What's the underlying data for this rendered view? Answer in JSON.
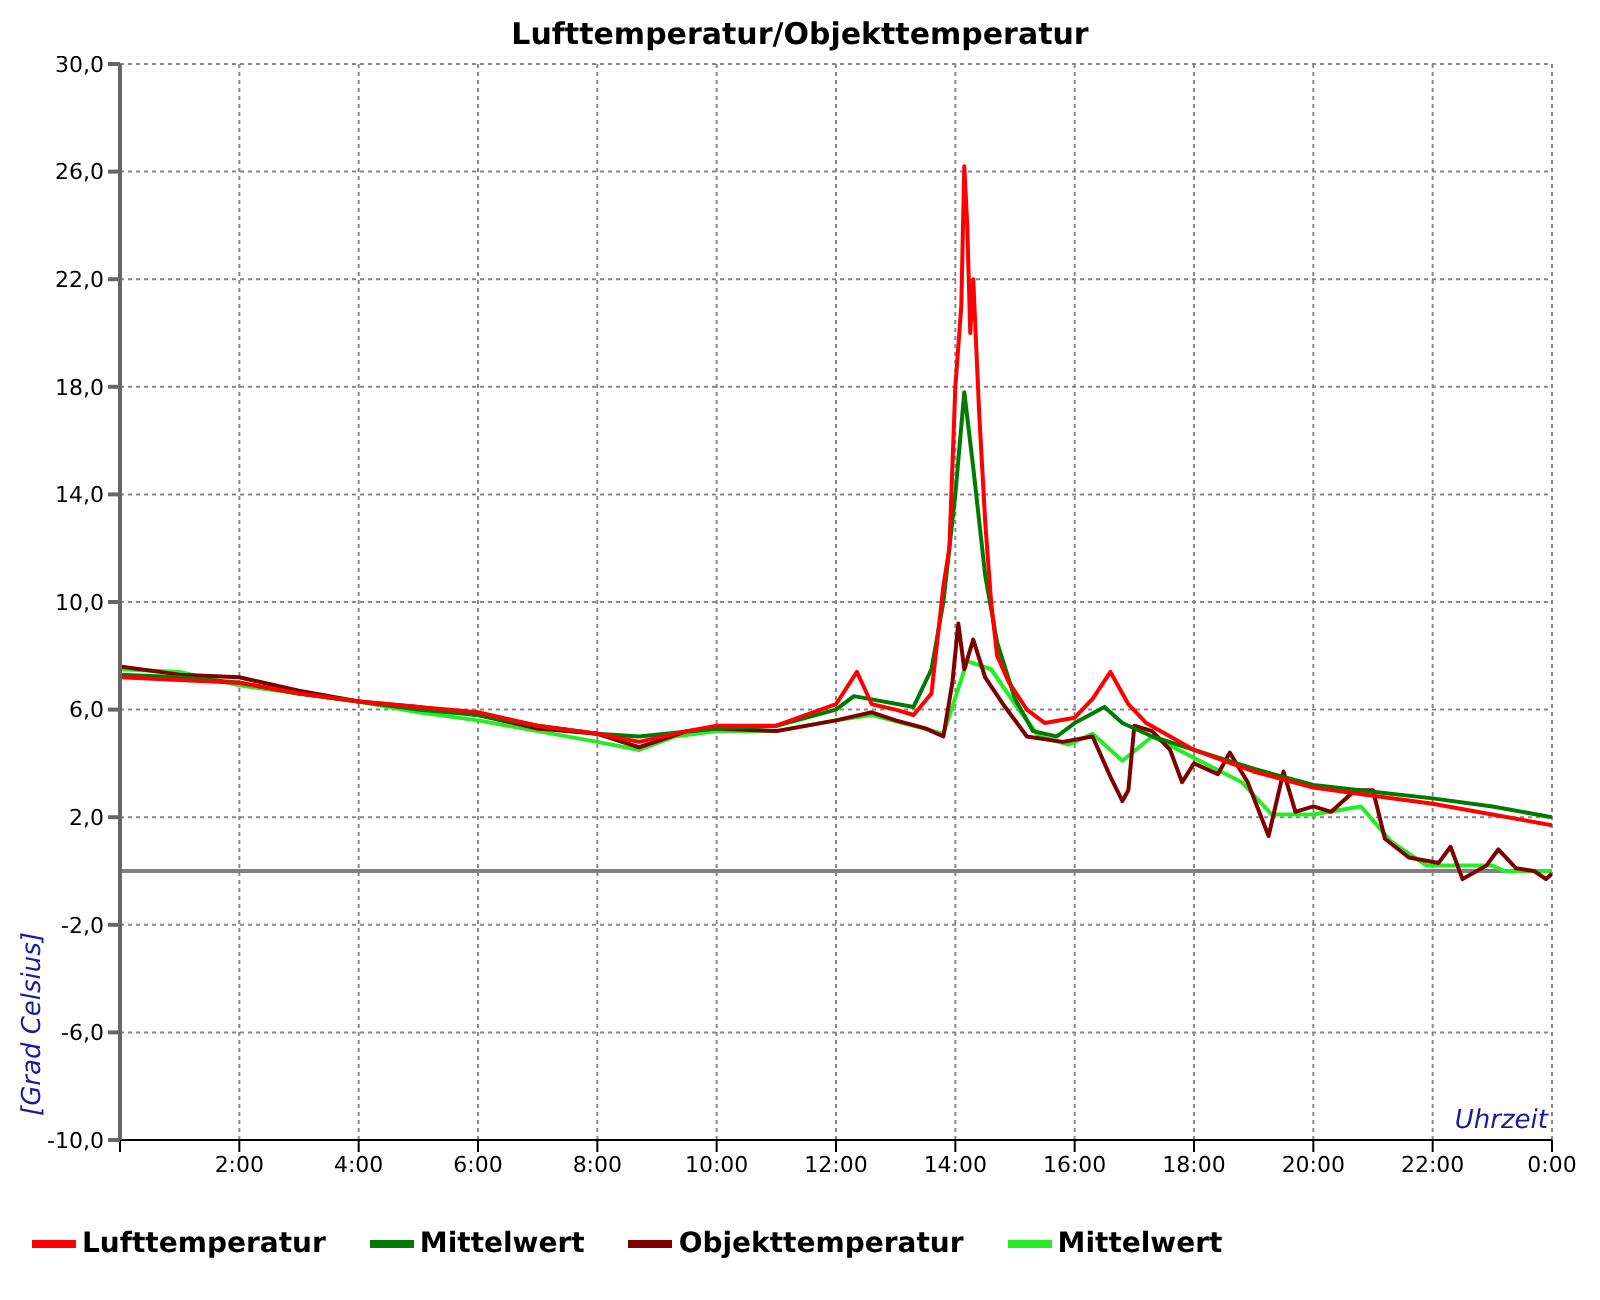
{
  "chart_data": {
    "type": "line",
    "title": "Lufttemperatur/Objekttemperatur",
    "xlabel": "Uhrzeit",
    "ylabel": "[Grad Celsius]",
    "xlim": [
      0,
      24
    ],
    "xticks": [
      {
        "value": 0,
        "label": null
      },
      {
        "value": 2,
        "label": "2:00"
      },
      {
        "value": 4,
        "label": "4:00"
      },
      {
        "value": 6,
        "label": "6:00"
      },
      {
        "value": 8,
        "label": "8:00"
      },
      {
        "value": 10,
        "label": "10:00"
      },
      {
        "value": 12,
        "label": "12:00"
      },
      {
        "value": 14,
        "label": "14:00"
      },
      {
        "value": 16,
        "label": "16:00"
      },
      {
        "value": 18,
        "label": "18:00"
      },
      {
        "value": 20,
        "label": "20:00"
      },
      {
        "value": 22,
        "label": "22:00"
      },
      {
        "value": 24,
        "label": "0:00"
      }
    ],
    "ylim": [
      -10,
      30
    ],
    "yticks": [
      {
        "value": -10,
        "label": "-10,0"
      },
      {
        "value": -6,
        "label": "-6,0"
      },
      {
        "value": -2,
        "label": "-2,0"
      },
      {
        "value": 2,
        "label": "2,0"
      },
      {
        "value": 6,
        "label": "6,0"
      },
      {
        "value": 10,
        "label": "10,0"
      },
      {
        "value": 14,
        "label": "14,0"
      },
      {
        "value": 18,
        "label": "18,0"
      },
      {
        "value": 22,
        "label": "22,0"
      },
      {
        "value": 26,
        "label": "26,0"
      },
      {
        "value": 30,
        "label": "30,0"
      }
    ],
    "grid": true,
    "legend": "bottom",
    "marker": "none",
    "line_style": "solid",
    "ref_lines": [
      {
        "axis": "y",
        "value": 0,
        "color": "#808080"
      }
    ],
    "series": [
      {
        "name": "Lufttemperatur",
        "color": "#ff0000",
        "x": [
          0,
          1,
          2,
          3,
          4,
          5,
          6,
          7,
          8,
          8.7,
          9.5,
          10,
          11,
          12,
          12.35,
          12.6,
          13,
          13.3,
          13.6,
          13.8,
          13.9,
          14,
          14.1,
          14.15,
          14.2,
          14.25,
          14.3,
          14.4,
          14.5,
          14.6,
          14.7,
          14.9,
          15.2,
          15.5,
          16,
          16.3,
          16.6,
          16.9,
          17.2,
          18,
          19,
          20,
          21,
          22,
          23,
          24
        ],
        "values": [
          7.2,
          7.1,
          7.0,
          6.6,
          6.3,
          6.1,
          5.9,
          5.4,
          5.1,
          4.8,
          5.2,
          5.4,
          5.4,
          6.2,
          7.4,
          6.2,
          6.0,
          5.8,
          6.6,
          10.6,
          12,
          18,
          21,
          26.2,
          24,
          20,
          22,
          17,
          13,
          10,
          8,
          7,
          6,
          5.5,
          5.7,
          6.4,
          7.4,
          6.2,
          5.5,
          4.5,
          3.7,
          3.1,
          2.8,
          2.5,
          2.1,
          1.7
        ]
      },
      {
        "name": "Mittelwert",
        "color": "#007a00",
        "x": [
          0,
          1,
          2,
          3,
          4,
          5,
          6,
          7,
          8,
          8.7,
          10,
          11,
          12,
          12.3,
          13.3,
          13.6,
          13.8,
          14,
          14.15,
          14.3,
          14.5,
          14.7,
          15,
          15.3,
          15.7,
          16,
          16.5,
          16.8,
          17.3,
          18,
          19,
          20,
          21,
          22,
          23,
          24
        ],
        "values": [
          7.3,
          7.2,
          7.0,
          6.6,
          6.3,
          6.0,
          5.8,
          5.4,
          5.1,
          5.0,
          5.3,
          5.4,
          6.0,
          6.5,
          6.1,
          7.5,
          10,
          14,
          17.8,
          15,
          11,
          8.5,
          6.4,
          5.2,
          5.0,
          5.5,
          6.1,
          5.5,
          5.0,
          4.5,
          3.8,
          3.2,
          2.95,
          2.7,
          2.4,
          2.0
        ]
      },
      {
        "name": "Objekttemperatur",
        "color": "#800000",
        "x": [
          0,
          1,
          2,
          3,
          4,
          5,
          6,
          7,
          8,
          8.7,
          9.5,
          10,
          11,
          12,
          12.6,
          13,
          13.5,
          13.8,
          13.95,
          14.05,
          14.15,
          14.3,
          14.5,
          14.8,
          15.2,
          15.8,
          16.3,
          16.6,
          16.8,
          16.9,
          17,
          17.3,
          17.6,
          17.8,
          18,
          18.4,
          18.6,
          18.9,
          19.25,
          19.5,
          19.7,
          20,
          20.3,
          20.7,
          21,
          21.2,
          21.6,
          22.1,
          22.3,
          22.5,
          22.9,
          23.1,
          23.4,
          23.7,
          23.9,
          24
        ],
        "values": [
          7.6,
          7.3,
          7.2,
          6.7,
          6.3,
          6.1,
          5.8,
          5.3,
          5.1,
          4.6,
          5.2,
          5.3,
          5.2,
          5.6,
          5.9,
          5.6,
          5.3,
          5.0,
          7.0,
          9.2,
          7.5,
          8.6,
          7.2,
          6.2,
          5.0,
          4.8,
          5.0,
          3.5,
          2.6,
          3.0,
          5.4,
          5.2,
          4.5,
          3.3,
          4.0,
          3.6,
          4.4,
          3.3,
          1.3,
          3.7,
          2.2,
          2.4,
          2.2,
          3.0,
          3.0,
          1.2,
          0.5,
          0.3,
          0.9,
          -0.3,
          0.2,
          0.8,
          0.1,
          0.0,
          -0.3,
          -0.1
        ]
      },
      {
        "name": "Mittelwert",
        "color": "#22ee22",
        "x": [
          0,
          1,
          2,
          3,
          4,
          5,
          6,
          7,
          8,
          8.7,
          9.3,
          10,
          11,
          12,
          12.6,
          13.3,
          13.8,
          14.2,
          14.6,
          15,
          15.4,
          15.9,
          16.3,
          16.8,
          17.3,
          18.8,
          19.3,
          20,
          20.8,
          21.3,
          21.9,
          23,
          23.2,
          24
        ],
        "values": [
          7.5,
          7.4,
          6.9,
          6.6,
          6.3,
          5.9,
          5.6,
          5.2,
          4.8,
          4.5,
          5.0,
          5.2,
          5.2,
          5.6,
          5.8,
          5.4,
          5.1,
          7.8,
          7.5,
          6.2,
          5.0,
          4.7,
          5.1,
          4.1,
          5.0,
          3.3,
          2.1,
          2.1,
          2.4,
          1.1,
          0.2,
          0.2,
          0.0,
          0.0
        ]
      }
    ]
  }
}
